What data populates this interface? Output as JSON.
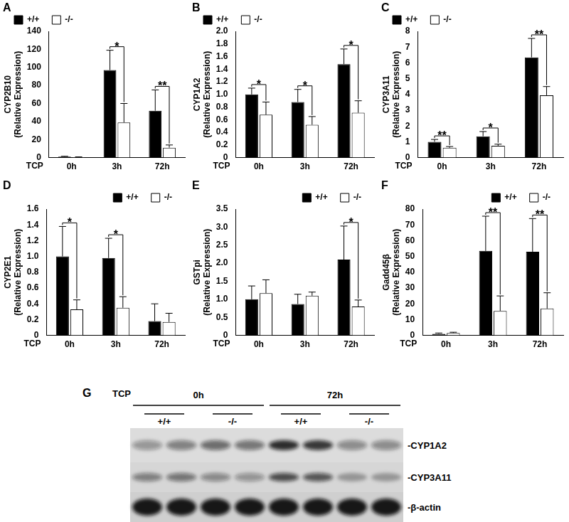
{
  "chart_data": [
    {
      "panel": "A",
      "type": "bar",
      "y_label": [
        "CYP2B10",
        "(Relative Expression)"
      ],
      "x_label": "TCP",
      "categories": [
        "0h",
        "3h",
        "72h"
      ],
      "series": [
        {
          "name": "+/+",
          "color": "#000000",
          "values": [
            1,
            97,
            52
          ],
          "errors": [
            0.5,
            22,
            23
          ]
        },
        {
          "name": "-/-",
          "color": "#ffffff",
          "values": [
            0.5,
            39,
            11
          ],
          "errors": [
            0.3,
            21,
            3
          ]
        }
      ],
      "ylim": [
        0,
        140
      ],
      "yticks": [
        0,
        20,
        40,
        60,
        80,
        100,
        120,
        140
      ],
      "grid": false,
      "legend": "upper left",
      "significance": [
        {
          "category": "3h",
          "label": "*"
        },
        {
          "category": "72h",
          "label": "**"
        }
      ]
    },
    {
      "panel": "B",
      "type": "bar",
      "y_label": [
        "CYP1A2",
        "(Relative Expression)"
      ],
      "x_label": "TCP",
      "categories": [
        "0h",
        "3h",
        "72h"
      ],
      "series": [
        {
          "name": "+/+",
          "color": "#000000",
          "values": [
            1.0,
            0.88,
            1.48
          ],
          "errors": [
            0.1,
            0.2,
            0.24
          ]
        },
        {
          "name": "-/-",
          "color": "#ffffff",
          "values": [
            0.68,
            0.52,
            0.71
          ],
          "errors": [
            0.2,
            0.13,
            0.19
          ]
        }
      ],
      "ylim": [
        0,
        2
      ],
      "yticks": [
        0,
        0.2,
        0.4,
        0.6,
        0.8,
        {
          "value": 1,
          "label": "1.0"
        },
        1.2,
        1.4,
        1.6,
        1.8,
        {
          "value": 2,
          "label": "2.0"
        }
      ],
      "grid": false,
      "legend": "upper left",
      "significance": [
        {
          "category": "0h",
          "label": "*"
        },
        {
          "category": "3h",
          "label": "*"
        },
        {
          "category": "72h",
          "label": "*"
        }
      ]
    },
    {
      "panel": "C",
      "type": "bar",
      "y_label": [
        "CYP3A11",
        "(Relative Expression)"
      ],
      "x_label": "TCP",
      "categories": [
        "0h",
        "3h",
        "72h"
      ],
      "series": [
        {
          "name": "+/+",
          "color": "#000000",
          "values": [
            1.0,
            1.35,
            6.35
          ],
          "errors": [
            0.15,
            0.3,
            1.2
          ]
        },
        {
          "name": "-/-",
          "color": "#ffffff",
          "values": [
            0.62,
            0.75,
            3.95
          ],
          "errors": [
            0.08,
            0.1,
            0.55
          ]
        }
      ],
      "ylim": [
        0,
        8
      ],
      "yticks": [
        0,
        1,
        2,
        3,
        4,
        5,
        6,
        7,
        8
      ],
      "grid": false,
      "legend": "upper left",
      "significance": [
        {
          "category": "0h",
          "label": "**"
        },
        {
          "category": "3h",
          "label": "*"
        },
        {
          "category": "72h",
          "label": "**"
        }
      ]
    },
    {
      "panel": "D",
      "type": "bar",
      "y_label": [
        "CYP2E1",
        "(Relative Expression)"
      ],
      "x_label": "TCP",
      "categories": [
        "0h",
        "3h",
        "72h"
      ],
      "series": [
        {
          "name": "+/+",
          "color": "#000000",
          "values": [
            1.0,
            0.98,
            0.18
          ],
          "errors": [
            0.38,
            0.25,
            0.22
          ]
        },
        {
          "name": "-/-",
          "color": "#ffffff",
          "values": [
            0.33,
            0.35,
            0.17
          ],
          "errors": [
            0.12,
            0.14,
            0.11
          ]
        }
      ],
      "ylim": [
        0,
        1.6
      ],
      "yticks": [
        0,
        0.2,
        0.4,
        0.6,
        0.8,
        {
          "value": 1,
          "label": "1.0"
        },
        1.2,
        1.4,
        1.6
      ],
      "grid": false,
      "legend": "upper right",
      "significance": [
        {
          "category": "0h",
          "label": "*"
        },
        {
          "category": "3h",
          "label": "*"
        }
      ]
    },
    {
      "panel": "E",
      "type": "bar",
      "y_label": [
        "GSTpi",
        "(Relative Expression)"
      ],
      "x_label": "TCP",
      "categories": [
        "0h",
        "3h",
        "72h"
      ],
      "series": [
        {
          "name": "+/+",
          "color": "#000000",
          "values": [
            1.0,
            0.87,
            2.1
          ],
          "errors": [
            0.37,
            0.27,
            0.93
          ]
        },
        {
          "name": "-/-",
          "color": "#ffffff",
          "values": [
            1.17,
            1.1,
            0.8
          ],
          "errors": [
            0.37,
            0.1,
            0.18
          ]
        }
      ],
      "ylim": [
        0,
        3.5
      ],
      "yticks": [
        0,
        0.5,
        {
          "value": 1,
          "label": "1.0"
        },
        1.5,
        {
          "value": 2,
          "label": "2.0"
        },
        2.5,
        {
          "value": 3,
          "label": "3.0"
        },
        3.5
      ],
      "grid": false,
      "legend": "upper right",
      "significance": [
        {
          "category": "72h",
          "label": "*"
        }
      ]
    },
    {
      "panel": "F",
      "type": "bar",
      "y_label": [
        "Gadd45β",
        "(Relative Expression)"
      ],
      "x_label": "TCP",
      "categories": [
        "0h",
        "3h",
        "72h"
      ],
      "series": [
        {
          "name": "+/+",
          "color": "#000000",
          "values": [
            1,
            53.5,
            53
          ],
          "errors": [
            0.5,
            22,
            21
          ]
        },
        {
          "name": "-/-",
          "color": "#ffffff",
          "values": [
            1.5,
            15.5,
            17
          ],
          "errors": [
            0.5,
            9.5,
            10
          ]
        }
      ],
      "ylim": [
        0,
        80
      ],
      "yticks": [
        0,
        10,
        20,
        30,
        40,
        50,
        60,
        70,
        80
      ],
      "grid": false,
      "legend": "upper right",
      "significance": [
        {
          "category": "3h",
          "label": "**"
        },
        {
          "category": "72h",
          "label": "**"
        }
      ]
    }
  ],
  "blot": {
    "panel": "G",
    "treatment_label": "TCP",
    "groups": [
      {
        "label": "0h",
        "genotypes": [
          "+/+",
          "-/-"
        ]
      },
      {
        "label": "72h",
        "genotypes": [
          "+/+",
          "-/-"
        ]
      }
    ],
    "rows": [
      "-CYP1A2",
      "-CYP3A11",
      "-β-actin"
    ]
  }
}
